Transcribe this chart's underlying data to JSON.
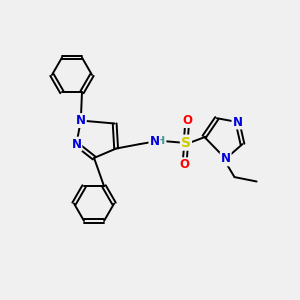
{
  "background_color": "#f0f0f0",
  "bond_color": "#000000",
  "atom_colors": {
    "N": "#0000dd",
    "S": "#cccc00",
    "O": "#ff0000",
    "C": "#000000",
    "H": "#4a9a9a"
  },
  "figsize": [
    3.0,
    3.0
  ],
  "dpi": 100,
  "lw": 1.4,
  "fs": 8.5
}
